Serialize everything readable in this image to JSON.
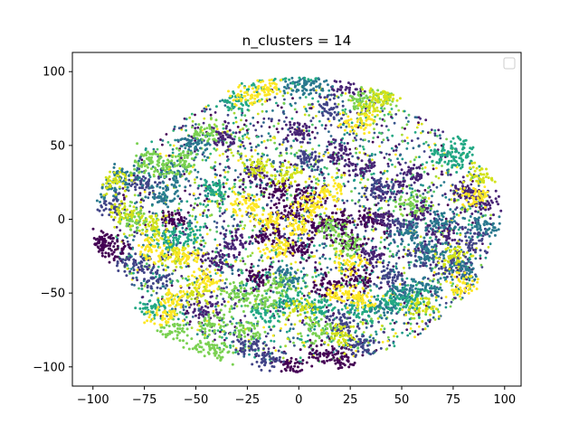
{
  "chart_data": {
    "type": "scatter",
    "title": "n_clusters = 14",
    "xlabel": "",
    "ylabel": "",
    "xlim": [
      -110,
      108
    ],
    "ylim": [
      -113,
      113
    ],
    "x_ticks": [
      -100,
      -75,
      -50,
      -25,
      0,
      25,
      50,
      75,
      100
    ],
    "y_ticks": [
      -100,
      -50,
      0,
      50,
      100
    ],
    "x_tick_labels": [
      "−100",
      "−75",
      "−50",
      "−25",
      "0",
      "25",
      "50",
      "75",
      "100"
    ],
    "y_tick_labels": [
      "−100",
      "−50",
      "0",
      "50",
      "100"
    ],
    "legend": {
      "placement": "top-right",
      "entries": []
    },
    "grid": false,
    "n_clusters": 14,
    "colormap": [
      "#440154",
      "#481a6c",
      "#472f7d",
      "#414487",
      "#39568c",
      "#31688e",
      "#2a788e",
      "#23888e",
      "#1f988b",
      "#22a884",
      "#35b779",
      "#54c568",
      "#7ad151",
      "#a5db36",
      "#d2e21b",
      "#fde725"
    ],
    "series": [
      {
        "color": "#440154",
        "points": [
          [
            -10,
            20
          ],
          [
            5,
            15
          ],
          [
            -5,
            5
          ],
          [
            10,
            -5
          ],
          [
            -15,
            -10
          ],
          [
            20,
            0
          ],
          [
            0,
            -20
          ],
          [
            -100,
            -18
          ],
          [
            -95,
            -15
          ],
          [
            -90,
            -20
          ],
          [
            -60,
            0
          ],
          [
            25,
            -15
          ],
          [
            35,
            0
          ],
          [
            -20,
            -40
          ],
          [
            15,
            -45
          ],
          [
            30,
            -40
          ],
          [
            10,
            -90
          ],
          [
            20,
            -95
          ],
          [
            -5,
            -100
          ]
        ]
      },
      {
        "color": "#482475",
        "points": [
          [
            20,
            45
          ],
          [
            30,
            35
          ],
          [
            45,
            20
          ],
          [
            55,
            30
          ],
          [
            40,
            0
          ],
          [
            60,
            5
          ],
          [
            70,
            -10
          ],
          [
            35,
            -25
          ],
          [
            -30,
            -15
          ],
          [
            -40,
            -30
          ],
          [
            -45,
            -60
          ],
          [
            -20,
            30
          ],
          [
            -35,
            55
          ],
          [
            0,
            60
          ],
          [
            90,
            10
          ],
          [
            80,
            20
          ],
          [
            25,
            90
          ]
        ]
      },
      {
        "color": "#414487",
        "points": [
          [
            40,
            20
          ],
          [
            50,
            -5
          ],
          [
            60,
            -25
          ],
          [
            75,
            -30
          ],
          [
            45,
            -40
          ],
          [
            85,
            -15
          ],
          [
            20,
            -70
          ],
          [
            30,
            -85
          ],
          [
            -25,
            -85
          ],
          [
            -15,
            -95
          ],
          [
            -70,
            -40
          ],
          [
            -80,
            -30
          ],
          [
            -90,
            10
          ],
          [
            -75,
            25
          ],
          [
            5,
            40
          ],
          [
            15,
            75
          ]
        ]
      },
      {
        "color": "#2a788e",
        "points": [
          [
            55,
            -10
          ],
          [
            65,
            -20
          ],
          [
            70,
            0
          ],
          [
            80,
            -35
          ],
          [
            50,
            -50
          ],
          [
            60,
            -45
          ],
          [
            40,
            -60
          ],
          [
            -5,
            -40
          ],
          [
            -60,
            30
          ],
          [
            -50,
            50
          ],
          [
            -65,
            15
          ],
          [
            -95,
            20
          ],
          [
            -85,
            30
          ],
          [
            0,
            90
          ],
          [
            10,
            95
          ],
          [
            90,
            -5
          ]
        ]
      },
      {
        "color": "#22a884",
        "points": [
          [
            -20,
            95
          ],
          [
            -10,
            100
          ],
          [
            0,
            100
          ],
          [
            5,
            103
          ],
          [
            30,
            -60
          ],
          [
            45,
            -55
          ],
          [
            55,
            -55
          ],
          [
            -55,
            -10
          ],
          [
            -65,
            -15
          ],
          [
            -5,
            -55
          ],
          [
            -15,
            -65
          ],
          [
            70,
            45
          ],
          [
            80,
            40
          ],
          [
            85,
            55
          ],
          [
            -40,
            20
          ],
          [
            -30,
            80
          ],
          [
            10,
            -60
          ],
          [
            -70,
            -60
          ]
        ]
      },
      {
        "color": "#7ad151",
        "points": [
          [
            -75,
            40
          ],
          [
            -65,
            35
          ],
          [
            -55,
            40
          ],
          [
            -30,
            -50
          ],
          [
            -20,
            -55
          ],
          [
            -10,
            -45
          ],
          [
            -40,
            -70
          ],
          [
            -25,
            -75
          ],
          [
            -50,
            -88
          ],
          [
            -40,
            -90
          ],
          [
            10,
            -75
          ],
          [
            25,
            -20
          ],
          [
            15,
            -5
          ],
          [
            -45,
            60
          ],
          [
            30,
            80
          ],
          [
            40,
            85
          ],
          [
            55,
            10
          ],
          [
            -80,
            0
          ],
          [
            -60,
            -75
          ]
        ]
      },
      {
        "color": "#d2e21b",
        "points": [
          [
            45,
            90
          ],
          [
            40,
            85
          ],
          [
            35,
            75
          ],
          [
            -20,
            35
          ],
          [
            -5,
            30
          ],
          [
            -70,
            -5
          ],
          [
            -60,
            -25
          ],
          [
            -50,
            -50
          ],
          [
            -85,
            5
          ],
          [
            20,
            -80
          ],
          [
            0,
            -60
          ],
          [
            75,
            -25
          ],
          [
            60,
            -60
          ],
          [
            90,
            30
          ],
          [
            -90,
            25
          ]
        ]
      },
      {
        "color": "#fde725",
        "points": [
          [
            15,
            20
          ],
          [
            5,
            10
          ],
          [
            0,
            -5
          ],
          [
            -15,
            0
          ],
          [
            -10,
            -20
          ],
          [
            25,
            -30
          ],
          [
            20,
            -50
          ],
          [
            -45,
            -40
          ],
          [
            -55,
            -25
          ],
          [
            -60,
            -55
          ],
          [
            -65,
            -65
          ],
          [
            -70,
            -20
          ],
          [
            -25,
            85
          ],
          [
            -15,
            90
          ],
          [
            30,
            -55
          ],
          [
            80,
            -45
          ],
          [
            85,
            15
          ],
          [
            30,
            65
          ],
          [
            -25,
            10
          ]
        ]
      }
    ]
  }
}
